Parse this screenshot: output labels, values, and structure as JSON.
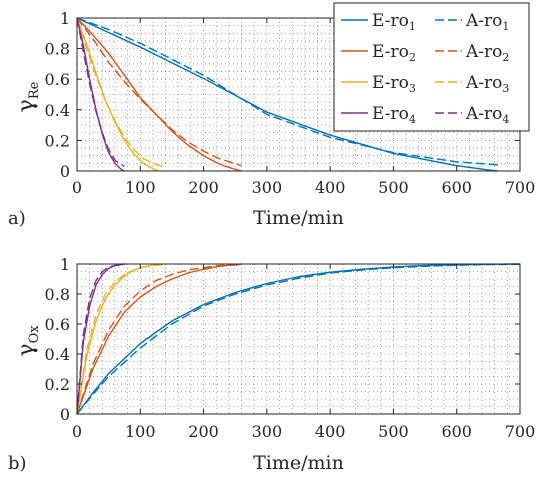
{
  "chart_data": [
    {
      "type": "line",
      "panel_label": "a)",
      "xlabel": "Time/min",
      "ylabel_main": "γ",
      "ylabel_sub": "Re",
      "xlim": [
        0,
        700
      ],
      "ylim": [
        0,
        1
      ],
      "xticks": [
        "0",
        "100",
        "200",
        "300",
        "400",
        "500",
        "600",
        "700"
      ],
      "yticks": [
        "0",
        "0.2",
        "0.4",
        "0.6",
        "0.8",
        "1"
      ],
      "grid": true,
      "legend_position": "top-right",
      "legend": [
        {
          "base": "E-ro",
          "sub": "1",
          "style": "solid",
          "color": "#0072BD"
        },
        {
          "base": "A-ro",
          "sub": "1",
          "style": "dashed",
          "color": "#0072BD"
        },
        {
          "base": "E-ro",
          "sub": "2",
          "style": "solid",
          "color": "#D95319"
        },
        {
          "base": "A-ro",
          "sub": "2",
          "style": "dashed",
          "color": "#D95319"
        },
        {
          "base": "E-ro",
          "sub": "3",
          "style": "solid",
          "color": "#EDB120"
        },
        {
          "base": "A-ro",
          "sub": "3",
          "style": "dashed",
          "color": "#EDB120"
        },
        {
          "base": "E-ro",
          "sub": "4",
          "style": "solid",
          "color": "#7E2F8E"
        },
        {
          "base": "A-ro",
          "sub": "4",
          "style": "dashed",
          "color": "#7E2F8E"
        }
      ],
      "series": [
        {
          "name": "E-ro1",
          "color": "#0072BD",
          "style": "solid",
          "x": [
            0,
            50,
            100,
            200,
            300,
            400,
            500,
            600,
            650,
            665
          ],
          "y": [
            1,
            0.905,
            0.81,
            0.605,
            0.385,
            0.235,
            0.115,
            0.035,
            0.007,
            0
          ]
        },
        {
          "name": "A-ro1",
          "color": "#0072BD",
          "style": "dashed",
          "x": [
            0,
            50,
            100,
            200,
            300,
            400,
            500,
            600,
            665
          ],
          "y": [
            1,
            0.925,
            0.835,
            0.625,
            0.37,
            0.22,
            0.12,
            0.06,
            0.04
          ]
        },
        {
          "name": "E-ro2",
          "color": "#D95319",
          "style": "solid",
          "x": [
            0,
            25,
            50,
            75,
            100,
            125,
            150,
            175,
            200,
            225,
            250,
            260
          ],
          "y": [
            1,
            0.89,
            0.77,
            0.625,
            0.48,
            0.37,
            0.26,
            0.17,
            0.1,
            0.045,
            0.01,
            0
          ]
        },
        {
          "name": "A-ro2",
          "color": "#D95319",
          "style": "dashed",
          "x": [
            0,
            25,
            50,
            75,
            100,
            125,
            150,
            175,
            200,
            225,
            260
          ],
          "y": [
            1,
            0.865,
            0.71,
            0.585,
            0.47,
            0.37,
            0.27,
            0.19,
            0.13,
            0.08,
            0.035
          ]
        },
        {
          "name": "E-ro3",
          "color": "#EDB120",
          "style": "solid",
          "x": [
            0,
            15,
            30,
            45,
            60,
            75,
            90,
            105,
            120,
            130
          ],
          "y": [
            1,
            0.83,
            0.64,
            0.46,
            0.32,
            0.2,
            0.11,
            0.05,
            0.015,
            0
          ]
        },
        {
          "name": "A-ro3",
          "color": "#EDB120",
          "style": "dashed",
          "x": [
            0,
            15,
            30,
            45,
            60,
            75,
            90,
            105,
            120,
            135
          ],
          "y": [
            1,
            0.8,
            0.62,
            0.46,
            0.33,
            0.22,
            0.14,
            0.08,
            0.05,
            0.03
          ]
        },
        {
          "name": "E-ro4",
          "color": "#7E2F8E",
          "style": "solid",
          "x": [
            0,
            10,
            20,
            30,
            40,
            50,
            60,
            70,
            75
          ],
          "y": [
            1,
            0.82,
            0.6,
            0.4,
            0.24,
            0.12,
            0.05,
            0.01,
            0
          ]
        },
        {
          "name": "A-ro4",
          "color": "#7E2F8E",
          "style": "dashed",
          "x": [
            0,
            10,
            20,
            30,
            40,
            50,
            60,
            75
          ],
          "y": [
            1,
            0.78,
            0.57,
            0.39,
            0.25,
            0.14,
            0.07,
            0.03
          ]
        }
      ]
    },
    {
      "type": "line",
      "panel_label": "b)",
      "xlabel": "Time/min",
      "ylabel_main": "γ",
      "ylabel_sub": "Ox",
      "xlim": [
        0,
        700
      ],
      "ylim": [
        0,
        1
      ],
      "xticks": [
        "0",
        "100",
        "200",
        "300",
        "400",
        "500",
        "600",
        "700"
      ],
      "yticks": [
        "0",
        "0.2",
        "0.4",
        "0.6",
        "0.8",
        "1"
      ],
      "grid": true,
      "series": [
        {
          "name": "E-ro1",
          "color": "#0072BD",
          "style": "solid",
          "x": [
            0,
            25,
            50,
            100,
            150,
            200,
            250,
            300,
            350,
            400,
            450,
            500,
            550,
            600,
            650,
            700
          ],
          "y": [
            0,
            0.14,
            0.27,
            0.47,
            0.62,
            0.73,
            0.81,
            0.87,
            0.915,
            0.945,
            0.965,
            0.98,
            0.99,
            0.995,
            0.998,
            1
          ]
        },
        {
          "name": "A-ro1",
          "color": "#0072BD",
          "style": "dashed",
          "x": [
            0,
            25,
            50,
            100,
            150,
            200,
            250,
            300,
            350,
            400,
            450,
            500,
            550,
            600,
            650,
            700
          ],
          "y": [
            0,
            0.13,
            0.25,
            0.44,
            0.6,
            0.72,
            0.8,
            0.86,
            0.905,
            0.94,
            0.96,
            0.975,
            0.985,
            0.992,
            0.996,
            0.998
          ]
        },
        {
          "name": "E-ro2",
          "color": "#D95319",
          "style": "solid",
          "x": [
            0,
            25,
            50,
            75,
            100,
            125,
            150,
            175,
            200,
            225,
            260
          ],
          "y": [
            0,
            0.3,
            0.52,
            0.68,
            0.78,
            0.85,
            0.9,
            0.94,
            0.965,
            0.985,
            1
          ]
        },
        {
          "name": "A-ro2",
          "color": "#D95319",
          "style": "dashed",
          "x": [
            0,
            25,
            50,
            75,
            100,
            125,
            150,
            175,
            200,
            225,
            260
          ],
          "y": [
            0,
            0.33,
            0.56,
            0.72,
            0.82,
            0.89,
            0.93,
            0.96,
            0.975,
            0.99,
            0.995
          ]
        },
        {
          "name": "E-ro3",
          "color": "#EDB120",
          "style": "solid",
          "x": [
            0,
            15,
            30,
            45,
            60,
            75,
            90,
            105,
            120,
            130
          ],
          "y": [
            0,
            0.38,
            0.62,
            0.77,
            0.86,
            0.92,
            0.96,
            0.98,
            0.995,
            1
          ]
        },
        {
          "name": "A-ro3",
          "color": "#EDB120",
          "style": "dashed",
          "x": [
            0,
            15,
            30,
            45,
            60,
            75,
            90,
            105,
            120,
            135
          ],
          "y": [
            0,
            0.42,
            0.66,
            0.8,
            0.88,
            0.93,
            0.96,
            0.98,
            0.99,
            0.995
          ]
        },
        {
          "name": "E-ro4",
          "color": "#7E2F8E",
          "style": "solid",
          "x": [
            0,
            10,
            20,
            30,
            40,
            50,
            60,
            75
          ],
          "y": [
            0,
            0.48,
            0.72,
            0.86,
            0.93,
            0.97,
            0.99,
            1
          ]
        },
        {
          "name": "A-ro4",
          "color": "#7E2F8E",
          "style": "dashed",
          "x": [
            0,
            10,
            20,
            30,
            40,
            50,
            60,
            75
          ],
          "y": [
            0,
            0.53,
            0.77,
            0.89,
            0.95,
            0.98,
            0.99,
            1
          ]
        }
      ]
    }
  ]
}
